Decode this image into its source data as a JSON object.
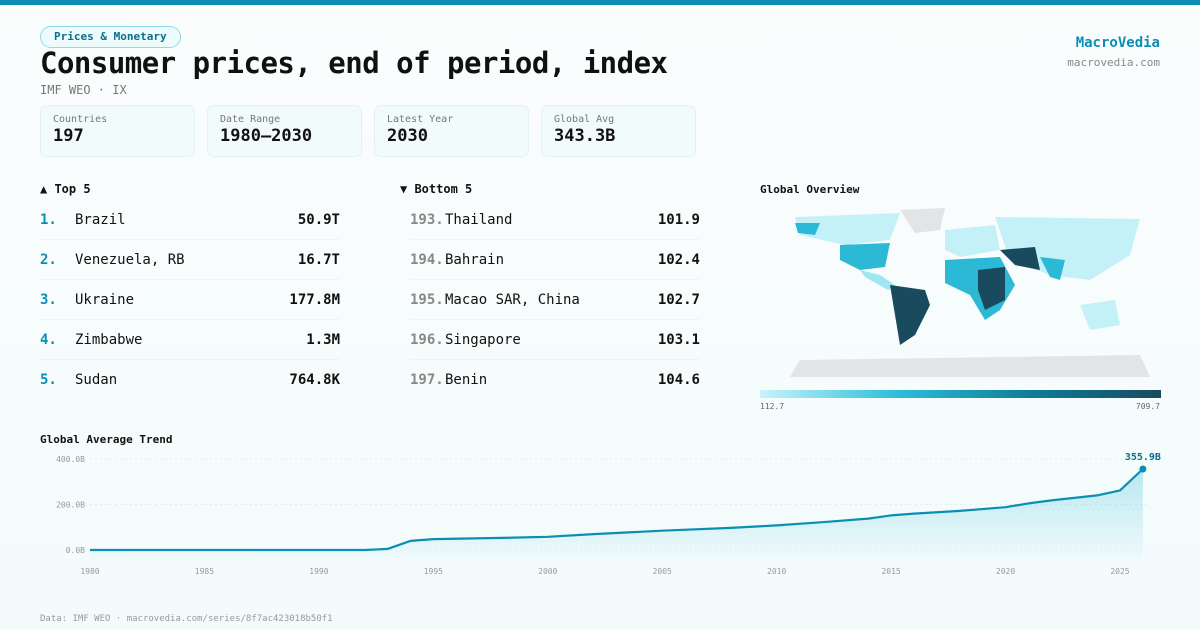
{
  "header": {
    "category": "Prices & Monetary",
    "title": "Consumer prices, end of period, index",
    "subtitle": "IMF WEO · IX",
    "brand": "MacroVedia",
    "brand_url": "macrovedia.com"
  },
  "stats": [
    {
      "label": "Countries",
      "value": "197"
    },
    {
      "label": "Date Range",
      "value": "1980–2030"
    },
    {
      "label": "Latest Year",
      "value": "2030"
    },
    {
      "label": "Global Avg",
      "value": "343.3B"
    }
  ],
  "top5": {
    "title": "▲ Top 5",
    "items": [
      {
        "rank": "1.",
        "name": "Brazil",
        "value": "50.9T"
      },
      {
        "rank": "2.",
        "name": "Venezuela, RB",
        "value": "16.7T"
      },
      {
        "rank": "3.",
        "name": "Ukraine",
        "value": "177.8M"
      },
      {
        "rank": "4.",
        "name": "Zimbabwe",
        "value": "1.3M"
      },
      {
        "rank": "5.",
        "name": "Sudan",
        "value": "764.8K"
      }
    ]
  },
  "bottom5": {
    "title": "▼ Bottom 5",
    "items": [
      {
        "rank": "193.",
        "name": "Thailand",
        "value": "101.9"
      },
      {
        "rank": "194.",
        "name": "Bahrain",
        "value": "102.4"
      },
      {
        "rank": "195.",
        "name": "Macao SAR, China",
        "value": "102.7"
      },
      {
        "rank": "196.",
        "name": "Singapore",
        "value": "103.1"
      },
      {
        "rank": "197.",
        "name": "Benin",
        "value": "104.6"
      }
    ]
  },
  "map": {
    "title": "Global Overview",
    "legend_min": "112.7",
    "legend_max": "709.7"
  },
  "chart_data": {
    "type": "area",
    "title": "Global Average Trend",
    "x": [
      1980,
      1985,
      1990,
      1992,
      1993,
      1994,
      1995,
      1998,
      2000,
      2002,
      2005,
      2008,
      2010,
      2012,
      2014,
      2015,
      2016,
      2018,
      2020,
      2021,
      2022,
      2024,
      2025,
      2026
    ],
    "values": [
      0,
      0,
      0,
      0,
      5,
      40,
      48,
      53,
      58,
      70,
      85,
      97,
      108,
      122,
      138,
      152,
      160,
      172,
      188,
      205,
      218,
      240,
      262,
      355.9
    ],
    "ylim": [
      0,
      400
    ],
    "yticks": [
      "0.0B",
      "200.0B",
      "400.0B"
    ],
    "ytick_values": [
      0,
      200,
      400
    ],
    "xticks": [
      1980,
      1985,
      1990,
      1995,
      2000,
      2005,
      2010,
      2015,
      2020,
      2025
    ],
    "last_label": "355.9B",
    "color": "#0a8fb3"
  },
  "footer": "Data: IMF WEO · macrovedia.com/series/8f7ac423018b50f1"
}
